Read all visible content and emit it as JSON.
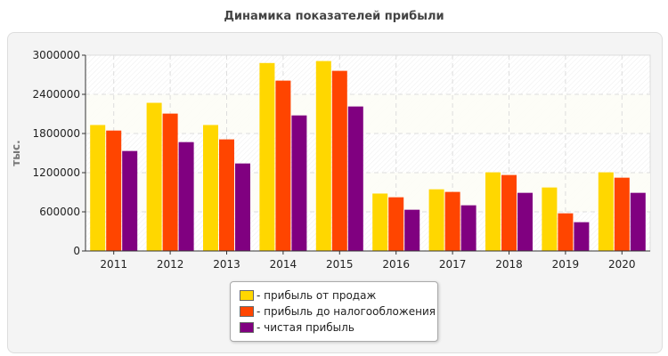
{
  "chart_data": {
    "type": "bar",
    "title": "Динамика показателей прибыли",
    "ylabel": "тыс.",
    "xlabel": "",
    "ylim": [
      0,
      3000000
    ],
    "yticks": [
      "0",
      "600000",
      "1200000",
      "1800000",
      "2400000",
      "3000000"
    ],
    "grid": true,
    "legend_position": "bottom",
    "categories": [
      "2011",
      "2012",
      "2013",
      "2014",
      "2015",
      "2016",
      "2017",
      "2018",
      "2019",
      "2020"
    ],
    "series": [
      {
        "name": "- прибыль от продаж",
        "color": "#FFD700",
        "values": [
          1930000,
          2270000,
          1930000,
          2880000,
          2910000,
          880000,
          945000,
          1205000,
          973000,
          1205000
        ]
      },
      {
        "name": "- прибыль до налогообложения",
        "color": "#FF4500",
        "values": [
          1845000,
          2105000,
          1710000,
          2610000,
          2760000,
          823000,
          905000,
          1164000,
          577000,
          1123000
        ]
      },
      {
        "name": "- чистая прибыль",
        "color": "#800080",
        "values": [
          1532000,
          1668000,
          1341000,
          2077000,
          2214000,
          632000,
          700000,
          891000,
          441000,
          891000
        ]
      }
    ]
  }
}
